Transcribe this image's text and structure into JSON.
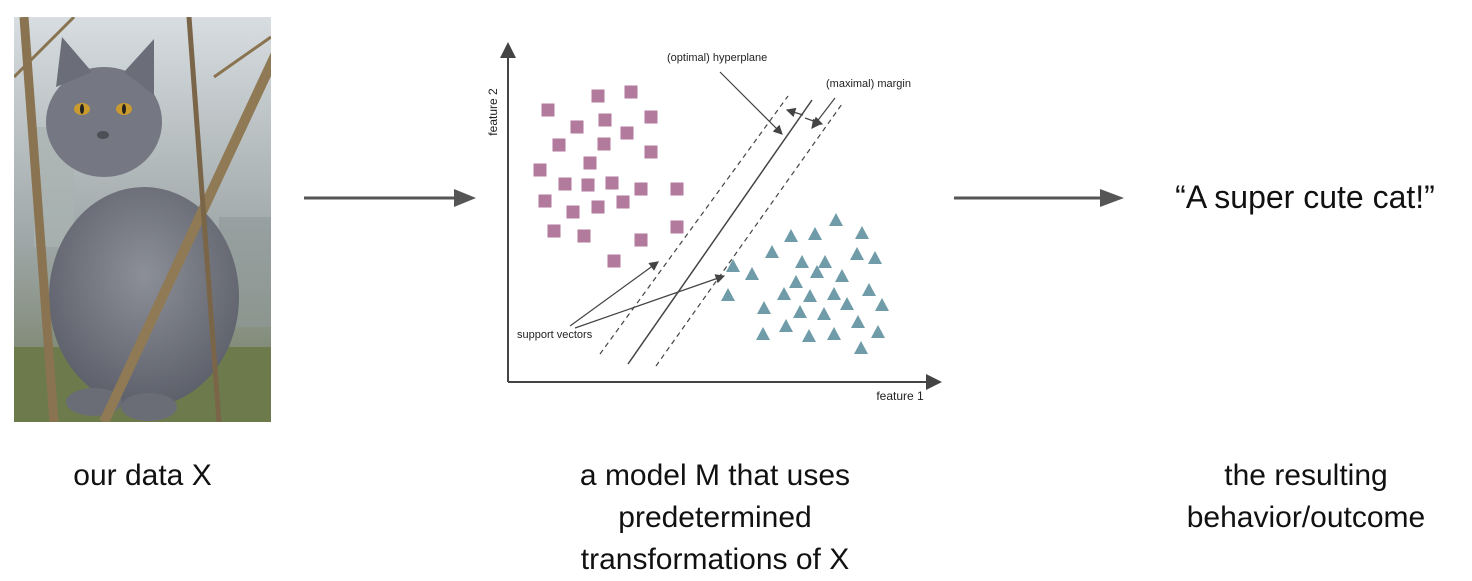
{
  "captions": {
    "data": "our data X",
    "model_lines": [
      "a model M that uses",
      "predetermined",
      "transformations of X"
    ],
    "outcome_lines": [
      "the resulting",
      "behavior/outcome"
    ]
  },
  "outcome_text": "“A super cute cat!”",
  "svm": {
    "x_axis_label": "feature 1",
    "y_axis_label": "feature 2",
    "hyperplane_label": "(optimal) hyperplane",
    "margin_label": "(maximal) margin",
    "support_vectors_label": "support vectors"
  },
  "colors": {
    "square": "#b27a9c",
    "triangle": "#6f9ca8",
    "arrow": "#555555",
    "axis": "#444444"
  },
  "icons": {
    "photo": "gray-cat-photo"
  }
}
